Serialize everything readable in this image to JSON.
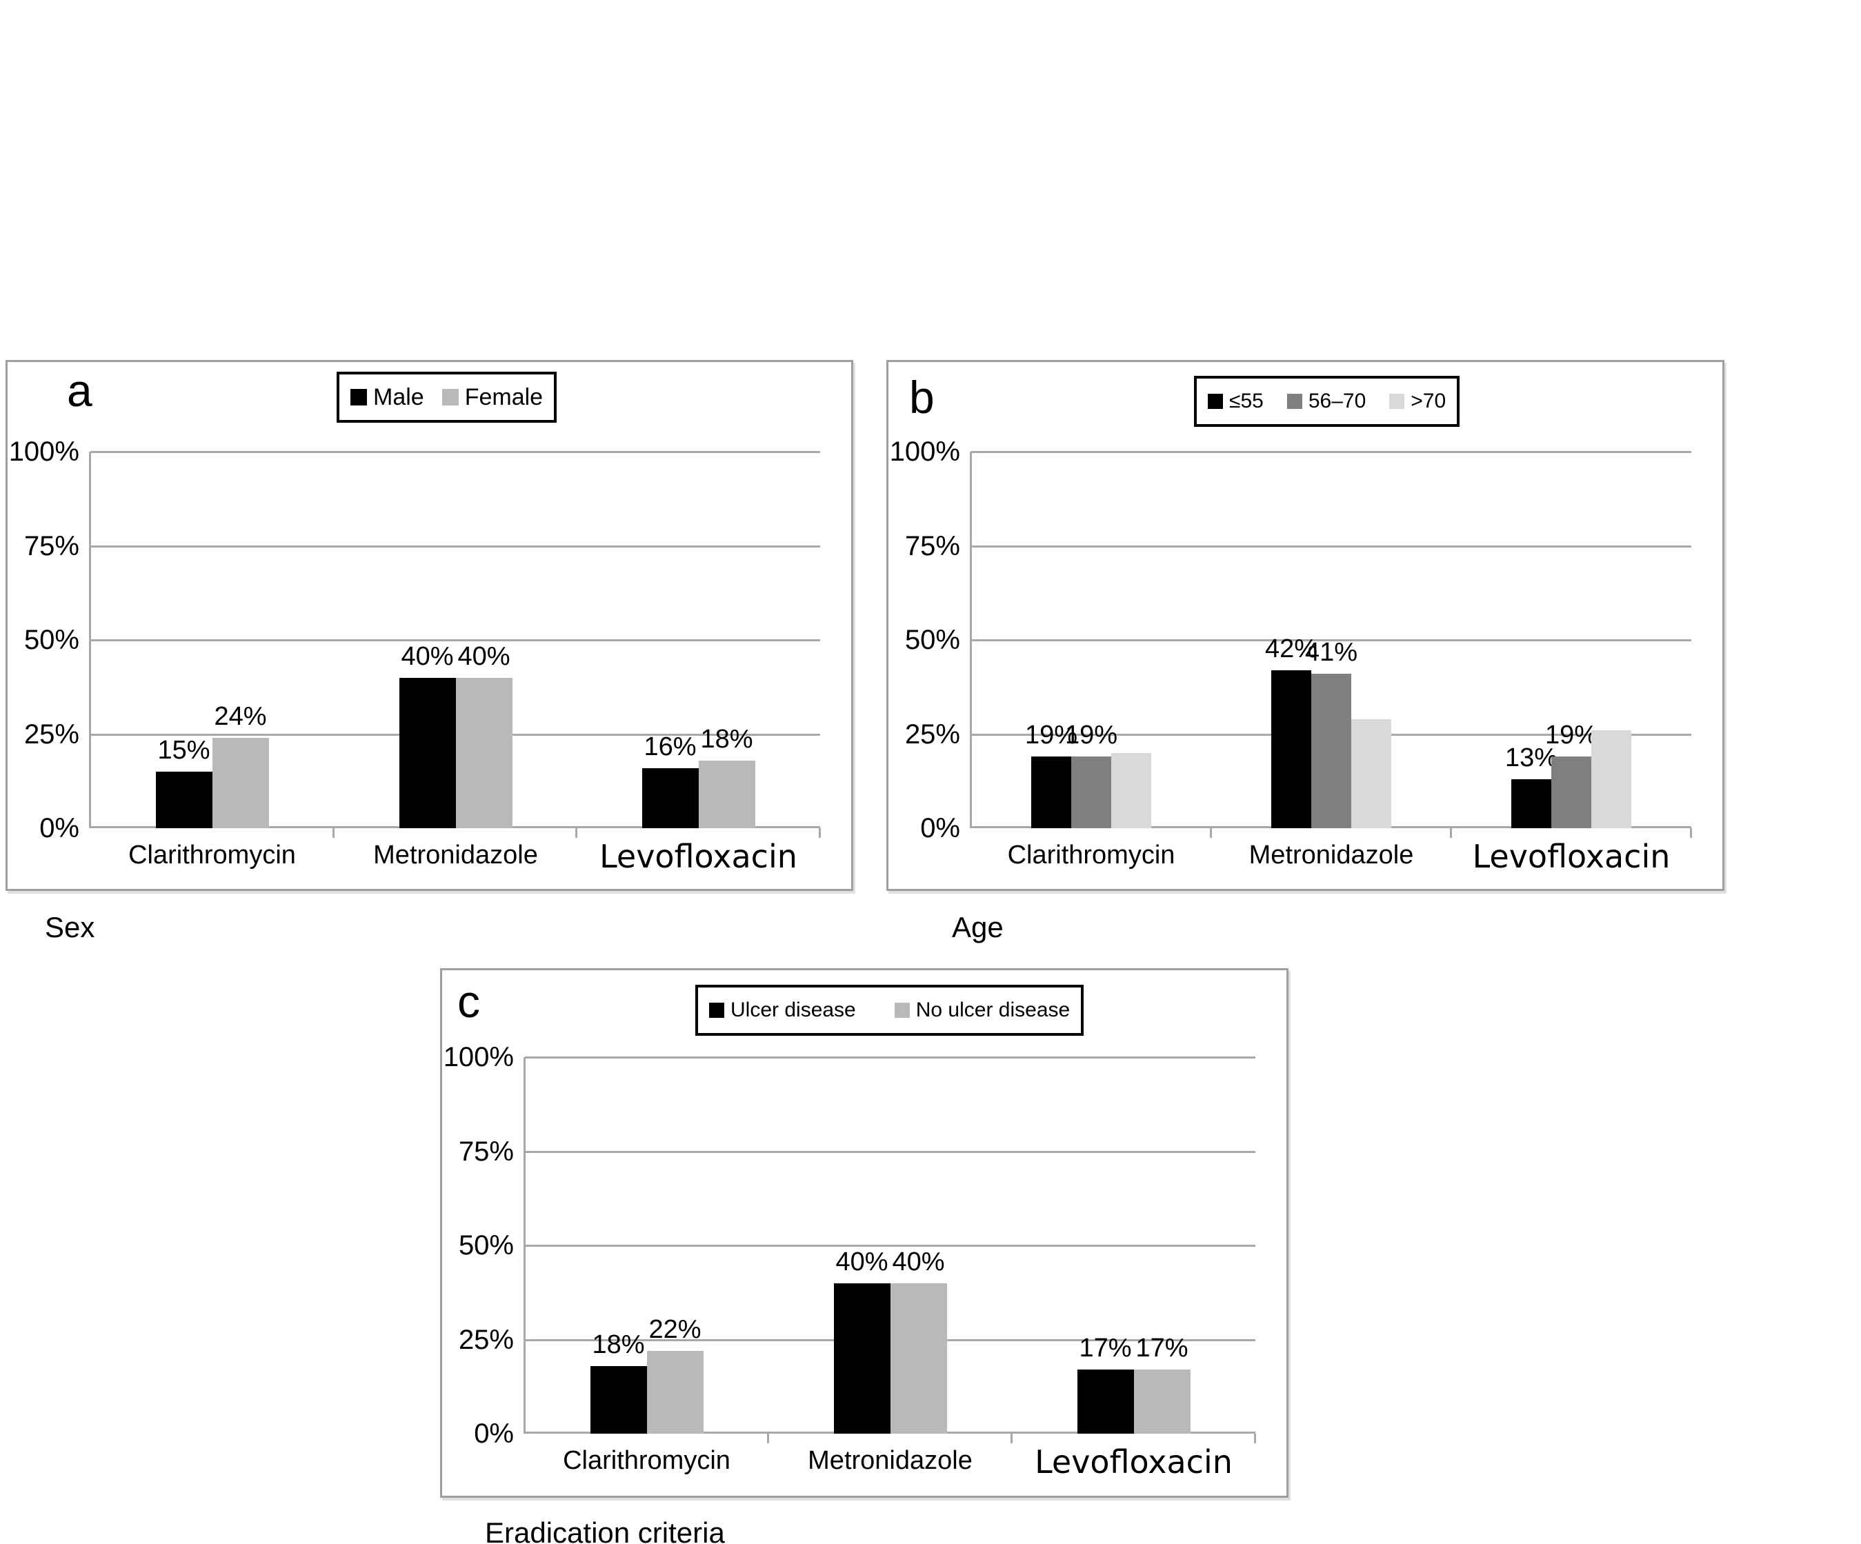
{
  "colors": {
    "black_series": "#000000",
    "mid_gray_series": "#7f7f7f",
    "light_gray_series": "#d9d9d9",
    "female_gray_series": "#b9b9b9",
    "gridline": "#a8a8a8",
    "panel_border": "#9f9f9f"
  },
  "chart_data": [
    {
      "type": "bar",
      "panel_letter": "a",
      "title": "Sex",
      "categories": [
        "Clarithromycin",
        "Metronidazole",
        "Levofloxacin"
      ],
      "series": [
        {
          "name": "Male",
          "color": "#000000",
          "values": [
            15,
            40,
            16
          ],
          "data_labels": [
            "15%",
            "40%",
            "16%"
          ]
        },
        {
          "name": "Female",
          "color": "#b9b9b9",
          "values": [
            24,
            40,
            18
          ],
          "data_labels": [
            "24%",
            "40%",
            "18%"
          ]
        }
      ],
      "ylim": [
        0,
        100
      ],
      "yticks": [
        "0%",
        "25%",
        "50%",
        "75%",
        "100%"
      ],
      "grid": true,
      "legend_position": "top-center"
    },
    {
      "type": "bar",
      "panel_letter": "b",
      "title": "Age",
      "categories": [
        "Clarithromycin",
        "Metronidazole",
        "Levofloxacin"
      ],
      "series": [
        {
          "name": "≤55",
          "color": "#000000",
          "values": [
            19,
            42,
            13
          ],
          "data_labels": [
            "19%",
            "42%",
            "13%"
          ]
        },
        {
          "name": "56–70",
          "color": "#7f7f7f",
          "values": [
            19,
            41,
            19
          ],
          "data_labels": [
            "19%",
            "41%",
            "19%"
          ]
        },
        {
          "name": ">70",
          "color": "#d9d9d9",
          "values": [
            20,
            29,
            26
          ],
          "data_labels": [
            "",
            "",
            ""
          ],
          "estimated": true
        }
      ],
      "ylim": [
        0,
        100
      ],
      "yticks": [
        "0%",
        "25%",
        "50%",
        "75%",
        "100%"
      ],
      "grid": true,
      "legend_position": "top-center"
    },
    {
      "type": "bar",
      "panel_letter": "c",
      "title": "Eradication criteria",
      "categories": [
        "Clarithromycin",
        "Metronidazole",
        "Levofloxacin"
      ],
      "series": [
        {
          "name": "Ulcer disease",
          "color": "#000000",
          "values": [
            18,
            40,
            17
          ],
          "data_labels": [
            "18%",
            "40%",
            "17%"
          ]
        },
        {
          "name": "No ulcer disease",
          "color": "#b9b9b9",
          "values": [
            22,
            40,
            17
          ],
          "data_labels": [
            "22%",
            "40%",
            "17%"
          ]
        }
      ],
      "ylim": [
        0,
        100
      ],
      "yticks": [
        "0%",
        "25%",
        "50%",
        "75%",
        "100%"
      ],
      "grid": true,
      "legend_position": "top-center"
    }
  ]
}
